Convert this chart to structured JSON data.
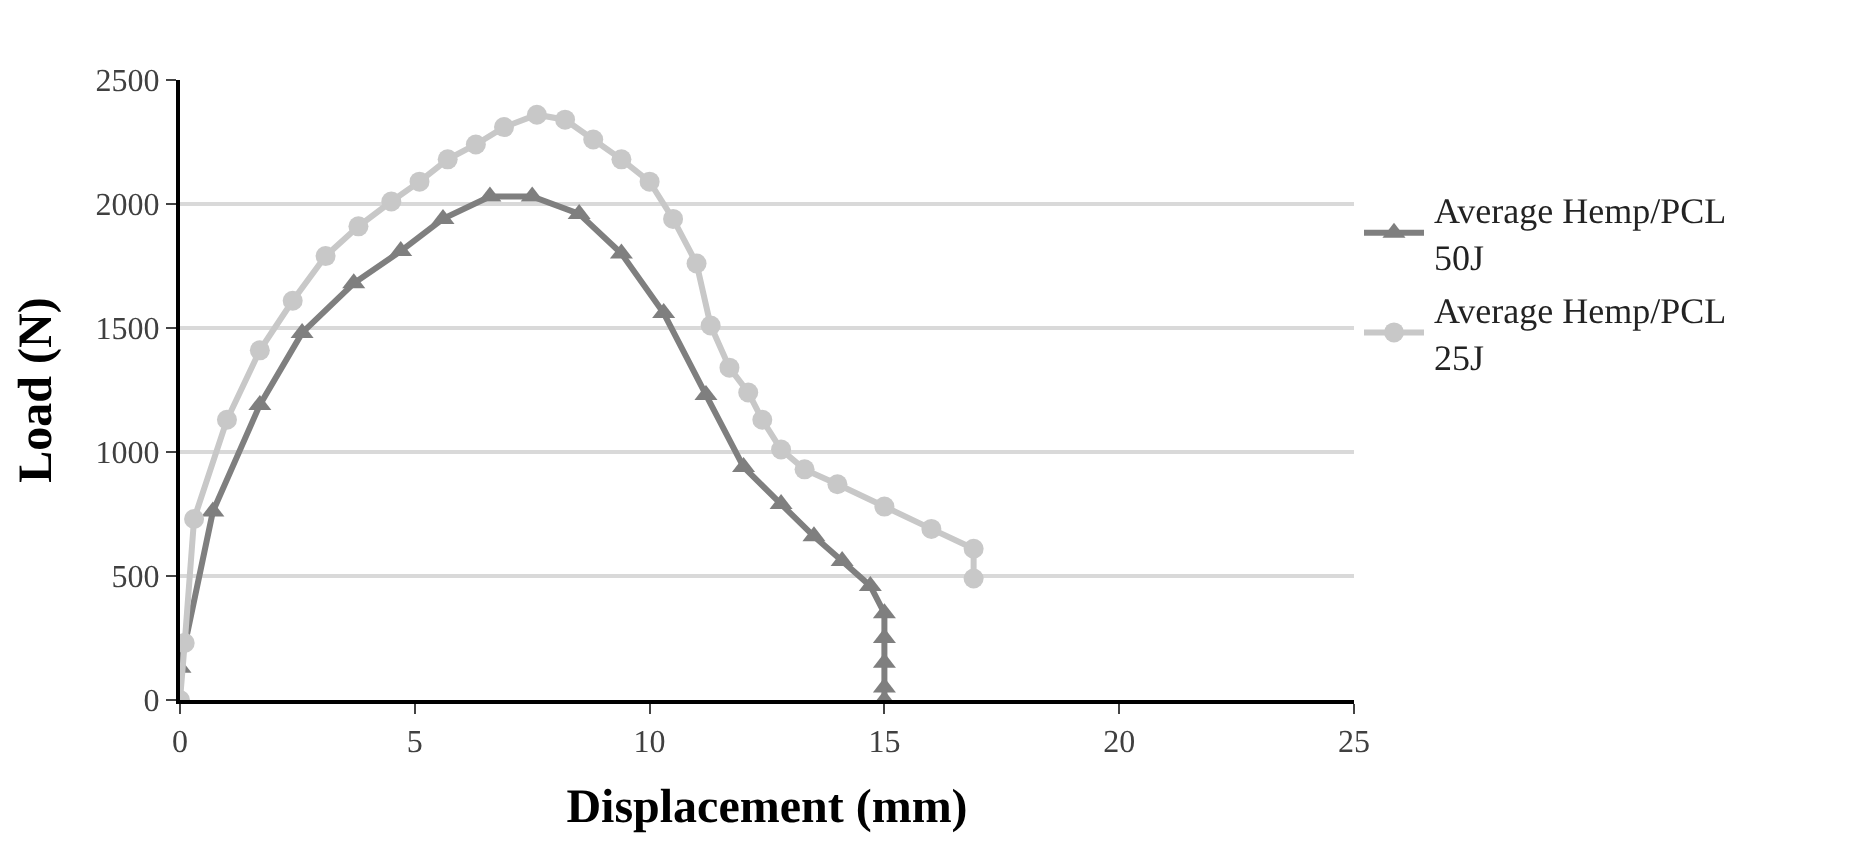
{
  "chart_data": {
    "type": "line",
    "xlabel": "Displacement (mm)",
    "ylabel": "Load (N)",
    "xlim": [
      0,
      25
    ],
    "xticks": [
      0,
      5,
      10,
      15,
      20,
      25
    ],
    "ylim": [
      0,
      2500
    ],
    "yticks": [
      0,
      500,
      1000,
      1500,
      2000,
      2500
    ],
    "grid": "y",
    "legend": "right",
    "line_style": "solid",
    "series": [
      {
        "name": "Average Hemp/PCL 50J",
        "color": "#7f7f7f",
        "marker": "triangle",
        "x": [
          0,
          0,
          0.7,
          1.7,
          2.6,
          3.7,
          4.7,
          5.6,
          6.6,
          7.5,
          8.5,
          9.4,
          10.3,
          11.2,
          12.0,
          12.8,
          13.5,
          14.1,
          14.7,
          15.0,
          15.0,
          15.0,
          15.0,
          15.0
        ],
        "values": [
          0,
          130,
          760,
          1190,
          1480,
          1680,
          1810,
          1940,
          2030,
          2030,
          1960,
          1800,
          1560,
          1230,
          940,
          790,
          660,
          560,
          460,
          350,
          250,
          150,
          50,
          0
        ]
      },
      {
        "name": "Average Hemp/PCL 25J",
        "color": "#c8c8c8",
        "marker": "circle",
        "x": [
          0,
          0.1,
          0.3,
          1.0,
          1.7,
          2.4,
          3.1,
          3.8,
          4.5,
          5.1,
          5.7,
          6.3,
          6.9,
          7.6,
          8.2,
          8.8,
          9.4,
          10.0,
          10.5,
          11.0,
          11.3,
          11.7,
          12.1,
          12.4,
          12.8,
          13.3,
          14,
          15,
          16,
          16.9,
          16.9
        ],
        "values": [
          0,
          230,
          730,
          1130,
          1410,
          1610,
          1790,
          1910,
          2010,
          2090,
          2180,
          2240,
          2310,
          2360,
          2340,
          2260,
          2180,
          2090,
          1940,
          1760,
          1510,
          1340,
          1240,
          1130,
          1010,
          930,
          870,
          780,
          690,
          610,
          490
        ]
      }
    ]
  }
}
